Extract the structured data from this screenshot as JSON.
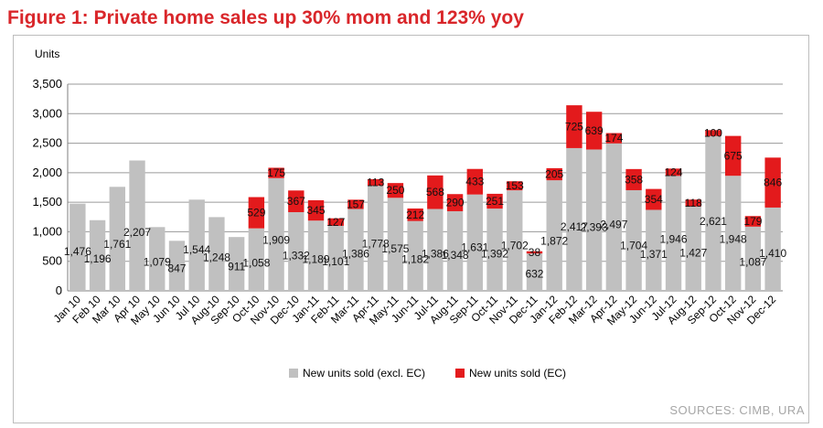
{
  "title": "Figure 1: Private home sales up 30% mom and 123% yoy",
  "source": "SOURCES: CIMB, URA",
  "colors": {
    "title": "#d9262a",
    "excl_ec": "#c0c0c0",
    "ec": "#e31a1c"
  },
  "chart_data": {
    "type": "bar",
    "stacked": true,
    "ylabel": "Units",
    "ylim": [
      0,
      3500
    ],
    "yticks": [
      "0",
      "500",
      "1,000",
      "1,500",
      "2,000",
      "2,500",
      "3,000",
      "3,500"
    ],
    "grid": true,
    "legend_position": "bottom",
    "categories": [
      "Jan 10",
      "Feb 10",
      "Mar 10",
      "Apr 10",
      "May 10",
      "Jun 10",
      "Jul 10",
      "Aug-10",
      "Sep-10",
      "Oct-10",
      "Nov-10",
      "Dec-10",
      "Jan-11",
      "Feb-11",
      "Mar-11",
      "Apr-11",
      "May-11",
      "Jun-11",
      "Jul-11",
      "Aug-11",
      "Sep-11",
      "Oct-11",
      "Nov-11",
      "Dec-11",
      "Jan-12",
      "Feb-12",
      "Mar-12",
      "Apr-12",
      "May-12",
      "Jun-12",
      "Jul-12",
      "Aug-12",
      "Sep-12",
      "Oct-12",
      "Nov-12",
      "Dec-12"
    ],
    "series": [
      {
        "name": "New units sold (excl. EC)",
        "values": [
          1476,
          1196,
          1761,
          2207,
          1079,
          847,
          1544,
          1248,
          911,
          1058,
          1909,
          1332,
          1189,
          1101,
          1386,
          1778,
          1575,
          1182,
          1386,
          1348,
          1631,
          1392,
          1702,
          632,
          1872,
          2417,
          2393,
          2497,
          1704,
          1371,
          1946,
          1427,
          2621,
          1948,
          1087,
          1410
        ],
        "labels": [
          "1,476",
          "1,196",
          "1,761",
          "2,207",
          "1,079",
          "847",
          "1,544",
          "1,248",
          "911",
          "1,058",
          "1,909",
          "1,332",
          "1,189",
          "1,101",
          "1,386",
          "1,778",
          "1,575",
          "1,182",
          "1,386",
          "1,348",
          "1,631",
          "1,392",
          "1,702",
          "632",
          "1,872",
          "2,417",
          "2,393",
          "2,497",
          "1,704",
          "1,371",
          "1,946",
          "1,427",
          "2,621",
          "1,948",
          "1,087",
          "1,410"
        ]
      },
      {
        "name": "New units sold (EC)",
        "values": [
          0,
          0,
          0,
          0,
          0,
          0,
          0,
          0,
          0,
          529,
          175,
          367,
          345,
          127,
          157,
          113,
          250,
          212,
          568,
          290,
          433,
          251,
          153,
          38,
          205,
          725,
          639,
          174,
          358,
          354,
          124,
          118,
          100,
          675,
          179,
          846
        ],
        "labels": [
          "",
          "",
          "",
          "",
          "",
          "",
          "",
          "",
          "",
          "529",
          "175",
          "367",
          "345",
          "127",
          "157",
          "113",
          "250",
          "212",
          "568",
          "290",
          "433",
          "251",
          "153",
          "38",
          "205",
          "725",
          "639",
          "174",
          "358",
          "354",
          "124",
          "118",
          "100",
          "675",
          "179",
          "846"
        ]
      }
    ]
  }
}
